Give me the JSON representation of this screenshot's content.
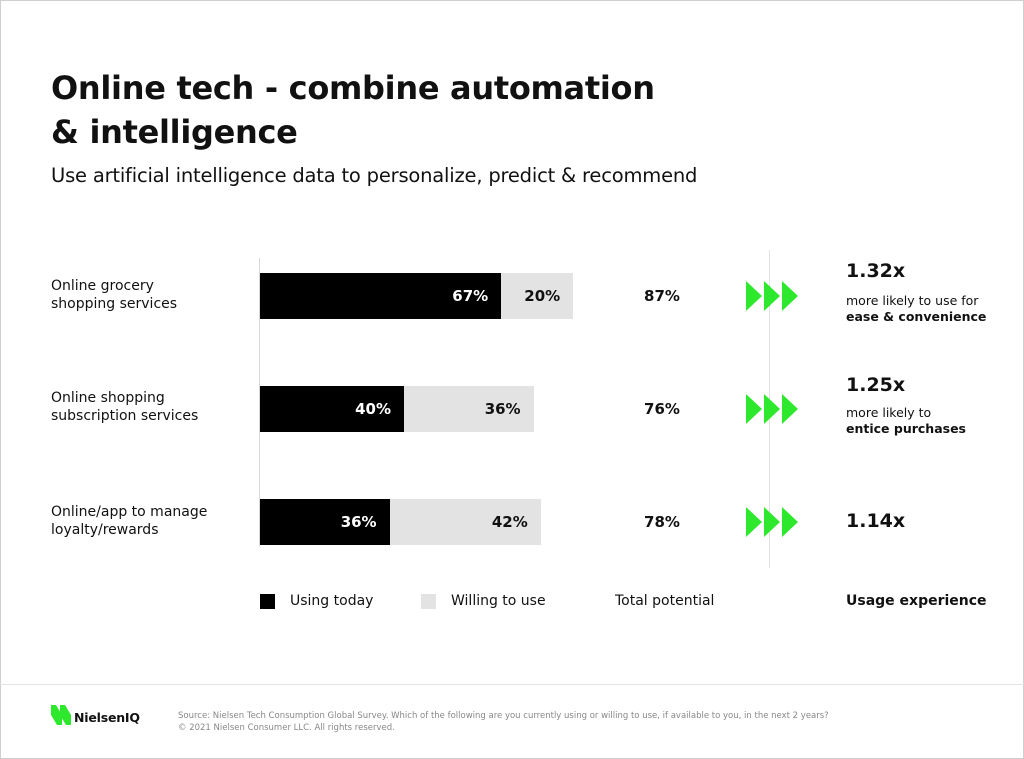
{
  "title_line1": "Online tech - combine automation",
  "title_line2": "& intelligence",
  "subtitle": "Use artificial intelligence data to personalize, predict & recommend",
  "rows": [
    {
      "label_line1": "Online grocery",
      "label_line2": "shopping services"
    },
    {
      "label_line1": "Online shopping",
      "label_line2": "subscription services"
    },
    {
      "label_line1": "Online/app to manage",
      "label_line2": "loyalty/rewards"
    }
  ],
  "chart_data": {
    "type": "bar",
    "orientation": "horizontal",
    "stacked": true,
    "categories": [
      "Online grocery shopping services",
      "Online shopping subscription services",
      "Online/app to manage loyalty/rewards"
    ],
    "series": [
      {
        "name": "Using today",
        "values": [
          67,
          40,
          36
        ],
        "labels": [
          "67%",
          "40%",
          "36%"
        ],
        "color": "#000000"
      },
      {
        "name": "Willing to use",
        "values": [
          20,
          36,
          42
        ],
        "labels": [
          "20%",
          "36%",
          "42%"
        ],
        "color": "#e3e3e3"
      }
    ],
    "totals": [
      "87%",
      "76%",
      "78%"
    ],
    "xlim": [
      0,
      100
    ],
    "grid": false,
    "legend": "bottom"
  },
  "multipliers": [
    {
      "value": "1.32x",
      "desc_line1": "more likely to use for",
      "desc_line2": "ease & convenience"
    },
    {
      "value": "1.25x",
      "desc_line1": "more likely to",
      "desc_line2": "entice purchases"
    },
    {
      "value": "1.14x",
      "desc_line1": "",
      "desc_line2": ""
    }
  ],
  "legend": {
    "using": "Using today",
    "willing": "Willing to use",
    "total": "Total potential",
    "usage": "Usage experience"
  },
  "footer": {
    "brand": "NielsenIQ",
    "source": "Source: Nielsen Tech Consumption Global Survey. Which of the following are you currently using or willing to use, if available to you, in the next 2 years?",
    "copyright": "© 2021 Nielsen Consumer LLC. All rights reserved."
  },
  "colors": {
    "using": "#000000",
    "willing": "#e3e3e3",
    "accent_green": "#2ee82e"
  },
  "icons": [
    "triple-arrow-icon",
    "nielseniq-logo-icon"
  ]
}
